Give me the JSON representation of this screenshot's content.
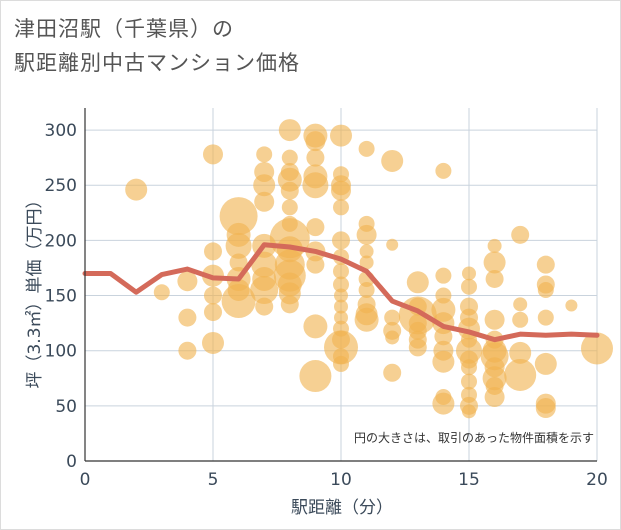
{
  "title_line1": "津田沼駅（千葉県）の",
  "title_line2": "駅距離別中古マンション価格",
  "note": "円の大きさは、取引のあった物件面積を示す",
  "colors": {
    "bubble": "#f0b350",
    "line": "#d46a5a",
    "grid": "#c9d3dd",
    "axis": "#333333"
  },
  "chart_data": {
    "type": "scatter",
    "xlabel": "駅距離（分）",
    "ylabel": "坪（3.3㎡）単価（万円）",
    "xlim": [
      0,
      20
    ],
    "ylim": [
      0,
      320
    ],
    "xticks": [
      0,
      5,
      10,
      15,
      20
    ],
    "yticks": [
      0,
      50,
      100,
      150,
      200,
      250,
      300
    ],
    "grid": true,
    "bubbles": [
      {
        "x": 2,
        "y": 246,
        "s": 11
      },
      {
        "x": 3,
        "y": 153,
        "s": 8
      },
      {
        "x": 4,
        "y": 163,
        "s": 10
      },
      {
        "x": 4,
        "y": 130,
        "s": 9
      },
      {
        "x": 4,
        "y": 100,
        "s": 9
      },
      {
        "x": 5,
        "y": 278,
        "s": 10
      },
      {
        "x": 5,
        "y": 190,
        "s": 9
      },
      {
        "x": 5,
        "y": 168,
        "s": 11
      },
      {
        "x": 5,
        "y": 150,
        "s": 9
      },
      {
        "x": 5,
        "y": 135,
        "s": 9
      },
      {
        "x": 5,
        "y": 107,
        "s": 11
      },
      {
        "x": 6,
        "y": 222,
        "s": 19
      },
      {
        "x": 6,
        "y": 205,
        "s": 12
      },
      {
        "x": 6,
        "y": 195,
        "s": 13
      },
      {
        "x": 6,
        "y": 180,
        "s": 9
      },
      {
        "x": 6,
        "y": 165,
        "s": 12
      },
      {
        "x": 6,
        "y": 155,
        "s": 11
      },
      {
        "x": 6,
        "y": 145,
        "s": 17
      },
      {
        "x": 7,
        "y": 278,
        "s": 8
      },
      {
        "x": 7,
        "y": 262,
        "s": 10
      },
      {
        "x": 7,
        "y": 250,
        "s": 11
      },
      {
        "x": 7,
        "y": 235,
        "s": 10
      },
      {
        "x": 7,
        "y": 195,
        "s": 12
      },
      {
        "x": 7,
        "y": 178,
        "s": 13
      },
      {
        "x": 7,
        "y": 165,
        "s": 12
      },
      {
        "x": 7,
        "y": 155,
        "s": 14
      },
      {
        "x": 7,
        "y": 140,
        "s": 9
      },
      {
        "x": 8,
        "y": 300,
        "s": 11
      },
      {
        "x": 8,
        "y": 275,
        "s": 8
      },
      {
        "x": 8,
        "y": 262,
        "s": 9
      },
      {
        "x": 8,
        "y": 255,
        "s": 12
      },
      {
        "x": 8,
        "y": 245,
        "s": 9
      },
      {
        "x": 8,
        "y": 230,
        "s": 8
      },
      {
        "x": 8,
        "y": 215,
        "s": 8
      },
      {
        "x": 8,
        "y": 202,
        "s": 20
      },
      {
        "x": 8,
        "y": 192,
        "s": 13
      },
      {
        "x": 8,
        "y": 178,
        "s": 15
      },
      {
        "x": 8,
        "y": 168,
        "s": 16
      },
      {
        "x": 8,
        "y": 160,
        "s": 12
      },
      {
        "x": 8,
        "y": 152,
        "s": 11
      },
      {
        "x": 8,
        "y": 142,
        "s": 9
      },
      {
        "x": 9,
        "y": 295,
        "s": 12
      },
      {
        "x": 9,
        "y": 290,
        "s": 10
      },
      {
        "x": 9,
        "y": 275,
        "s": 9
      },
      {
        "x": 9,
        "y": 258,
        "s": 12
      },
      {
        "x": 9,
        "y": 250,
        "s": 13
      },
      {
        "x": 9,
        "y": 212,
        "s": 9
      },
      {
        "x": 9,
        "y": 190,
        "s": 10
      },
      {
        "x": 9,
        "y": 178,
        "s": 9
      },
      {
        "x": 9,
        "y": 122,
        "s": 12
      },
      {
        "x": 9,
        "y": 77,
        "s": 16
      },
      {
        "x": 10,
        "y": 295,
        "s": 11
      },
      {
        "x": 10,
        "y": 260,
        "s": 8
      },
      {
        "x": 10,
        "y": 250,
        "s": 10
      },
      {
        "x": 10,
        "y": 245,
        "s": 10
      },
      {
        "x": 10,
        "y": 230,
        "s": 8
      },
      {
        "x": 10,
        "y": 200,
        "s": 9
      },
      {
        "x": 10,
        "y": 185,
        "s": 8
      },
      {
        "x": 10,
        "y": 172,
        "s": 8
      },
      {
        "x": 10,
        "y": 160,
        "s": 8
      },
      {
        "x": 10,
        "y": 150,
        "s": 7
      },
      {
        "x": 10,
        "y": 140,
        "s": 7
      },
      {
        "x": 10,
        "y": 130,
        "s": 7
      },
      {
        "x": 10,
        "y": 120,
        "s": 8
      },
      {
        "x": 10,
        "y": 110,
        "s": 9
      },
      {
        "x": 10,
        "y": 103,
        "s": 17
      },
      {
        "x": 10,
        "y": 95,
        "s": 8
      },
      {
        "x": 10,
        "y": 88,
        "s": 8
      },
      {
        "x": 11,
        "y": 283,
        "s": 8
      },
      {
        "x": 11,
        "y": 215,
        "s": 8
      },
      {
        "x": 11,
        "y": 205,
        "s": 10
      },
      {
        "x": 11,
        "y": 190,
        "s": 7
      },
      {
        "x": 11,
        "y": 180,
        "s": 7
      },
      {
        "x": 11,
        "y": 165,
        "s": 8
      },
      {
        "x": 11,
        "y": 155,
        "s": 8
      },
      {
        "x": 11,
        "y": 142,
        "s": 9
      },
      {
        "x": 11,
        "y": 133,
        "s": 11
      },
      {
        "x": 11,
        "y": 128,
        "s": 12
      },
      {
        "x": 12,
        "y": 272,
        "s": 11
      },
      {
        "x": 12,
        "y": 196,
        "s": 6
      },
      {
        "x": 12,
        "y": 130,
        "s": 8
      },
      {
        "x": 12,
        "y": 118,
        "s": 9
      },
      {
        "x": 12,
        "y": 112,
        "s": 7
      },
      {
        "x": 12,
        "y": 80,
        "s": 9
      },
      {
        "x": 13,
        "y": 162,
        "s": 11
      },
      {
        "x": 13,
        "y": 140,
        "s": 9
      },
      {
        "x": 13,
        "y": 132,
        "s": 19
      },
      {
        "x": 13,
        "y": 125,
        "s": 9
      },
      {
        "x": 13,
        "y": 118,
        "s": 9
      },
      {
        "x": 13,
        "y": 110,
        "s": 9
      },
      {
        "x": 13,
        "y": 103,
        "s": 9
      },
      {
        "x": 14,
        "y": 263,
        "s": 8
      },
      {
        "x": 14,
        "y": 168,
        "s": 8
      },
      {
        "x": 14,
        "y": 150,
        "s": 8
      },
      {
        "x": 14,
        "y": 137,
        "s": 12
      },
      {
        "x": 14,
        "y": 125,
        "s": 11
      },
      {
        "x": 14,
        "y": 113,
        "s": 9
      },
      {
        "x": 14,
        "y": 100,
        "s": 10
      },
      {
        "x": 14,
        "y": 90,
        "s": 11
      },
      {
        "x": 14,
        "y": 58,
        "s": 8
      },
      {
        "x": 14,
        "y": 52,
        "s": 11
      },
      {
        "x": 15,
        "y": 170,
        "s": 7
      },
      {
        "x": 15,
        "y": 158,
        "s": 8
      },
      {
        "x": 15,
        "y": 140,
        "s": 9
      },
      {
        "x": 15,
        "y": 130,
        "s": 9
      },
      {
        "x": 15,
        "y": 120,
        "s": 11
      },
      {
        "x": 15,
        "y": 110,
        "s": 8
      },
      {
        "x": 15,
        "y": 100,
        "s": 13
      },
      {
        "x": 15,
        "y": 92,
        "s": 9
      },
      {
        "x": 15,
        "y": 85,
        "s": 8
      },
      {
        "x": 15,
        "y": 72,
        "s": 8
      },
      {
        "x": 15,
        "y": 60,
        "s": 8
      },
      {
        "x": 15,
        "y": 50,
        "s": 9
      },
      {
        "x": 15,
        "y": 45,
        "s": 7
      },
      {
        "x": 16,
        "y": 195,
        "s": 7
      },
      {
        "x": 16,
        "y": 180,
        "s": 11
      },
      {
        "x": 16,
        "y": 165,
        "s": 9
      },
      {
        "x": 16,
        "y": 128,
        "s": 10
      },
      {
        "x": 16,
        "y": 110,
        "s": 9
      },
      {
        "x": 16,
        "y": 100,
        "s": 12
      },
      {
        "x": 16,
        "y": 95,
        "s": 14
      },
      {
        "x": 16,
        "y": 85,
        "s": 10
      },
      {
        "x": 16,
        "y": 75,
        "s": 12
      },
      {
        "x": 16,
        "y": 68,
        "s": 9
      },
      {
        "x": 16,
        "y": 58,
        "s": 10
      },
      {
        "x": 17,
        "y": 205,
        "s": 9
      },
      {
        "x": 17,
        "y": 142,
        "s": 7
      },
      {
        "x": 17,
        "y": 128,
        "s": 8
      },
      {
        "x": 17,
        "y": 98,
        "s": 11
      },
      {
        "x": 17,
        "y": 78,
        "s": 16
      },
      {
        "x": 18,
        "y": 178,
        "s": 9
      },
      {
        "x": 18,
        "y": 160,
        "s": 9
      },
      {
        "x": 18,
        "y": 155,
        "s": 8
      },
      {
        "x": 18,
        "y": 130,
        "s": 8
      },
      {
        "x": 18,
        "y": 88,
        "s": 11
      },
      {
        "x": 18,
        "y": 52,
        "s": 10
      },
      {
        "x": 18,
        "y": 48,
        "s": 10
      },
      {
        "x": 19,
        "y": 141,
        "s": 6
      },
      {
        "x": 20,
        "y": 102,
        "s": 16
      }
    ],
    "trend": {
      "x": [
        0,
        1,
        2,
        3,
        4,
        5,
        6,
        7,
        8,
        9,
        10,
        11,
        12,
        13,
        14,
        15,
        16,
        17,
        18,
        19,
        20
      ],
      "y": [
        170,
        170,
        153,
        169,
        174,
        166,
        165,
        196,
        194,
        190,
        183,
        172,
        145,
        136,
        122,
        117,
        110,
        115,
        114,
        115,
        114
      ]
    }
  }
}
